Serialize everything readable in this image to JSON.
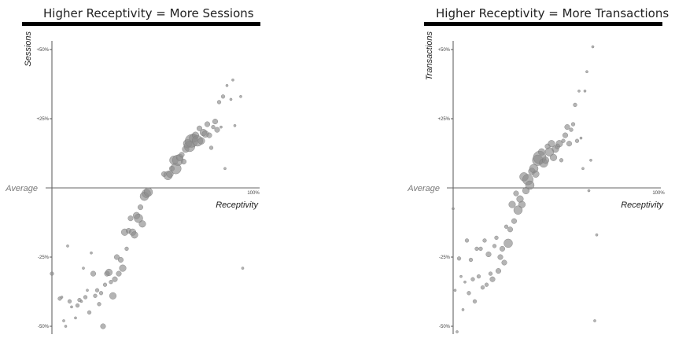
{
  "chart_data": [
    {
      "type": "scatter",
      "title": "Higher Receptivity = More Sessions",
      "xlabel": "Receptivity",
      "ylabel": "Sessions",
      "x_tick_label": "100%",
      "y_ticks": [
        50,
        25,
        -25,
        -50
      ],
      "y_tick_labels": [
        "+50%",
        "+25%",
        "-25%",
        "-50%"
      ],
      "zero_label": "Average",
      "xlim": [
        0,
        100
      ],
      "ylim": [
        -53,
        53
      ],
      "point_color": "#8c8c8c",
      "points": [
        {
          "x": 0,
          "y": -31,
          "size": 2
        },
        {
          "x": 4,
          "y": -40,
          "size": 2
        },
        {
          "x": 5,
          "y": -39.5,
          "size": 1
        },
        {
          "x": 6,
          "y": -48,
          "size": 1
        },
        {
          "x": 7,
          "y": -50,
          "size": 1
        },
        {
          "x": 8,
          "y": -21,
          "size": 1
        },
        {
          "x": 9,
          "y": -41,
          "size": 2
        },
        {
          "x": 10,
          "y": -43,
          "size": 1
        },
        {
          "x": 12,
          "y": -47,
          "size": 1
        },
        {
          "x": 13,
          "y": -42.5,
          "size": 2
        },
        {
          "x": 14,
          "y": -40.5,
          "size": 2
        },
        {
          "x": 15,
          "y": -41,
          "size": 1
        },
        {
          "x": 16,
          "y": -29,
          "size": 1
        },
        {
          "x": 17,
          "y": -39.5,
          "size": 2
        },
        {
          "x": 18,
          "y": -37,
          "size": 1
        },
        {
          "x": 19,
          "y": -45,
          "size": 2
        },
        {
          "x": 20,
          "y": -23.5,
          "size": 1
        },
        {
          "x": 21,
          "y": -31,
          "size": 3
        },
        {
          "x": 22,
          "y": -39,
          "size": 2
        },
        {
          "x": 23,
          "y": -37,
          "size": 2
        },
        {
          "x": 24,
          "y": -42,
          "size": 2
        },
        {
          "x": 25,
          "y": -38,
          "size": 2
        },
        {
          "x": 26,
          "y": -50,
          "size": 3
        },
        {
          "x": 27,
          "y": -35,
          "size": 2
        },
        {
          "x": 28,
          "y": -31,
          "size": 3
        },
        {
          "x": 29,
          "y": -30.5,
          "size": 4
        },
        {
          "x": 30,
          "y": -34,
          "size": 2
        },
        {
          "x": 31,
          "y": -39,
          "size": 4
        },
        {
          "x": 32,
          "y": -33,
          "size": 3
        },
        {
          "x": 33,
          "y": -25,
          "size": 3
        },
        {
          "x": 34,
          "y": -31,
          "size": 3
        },
        {
          "x": 35,
          "y": -26,
          "size": 3
        },
        {
          "x": 36,
          "y": -29,
          "size": 4
        },
        {
          "x": 37,
          "y": -16,
          "size": 4
        },
        {
          "x": 38,
          "y": -22,
          "size": 2
        },
        {
          "x": 39,
          "y": -15.5,
          "size": 3
        },
        {
          "x": 40,
          "y": -11,
          "size": 3
        },
        {
          "x": 41,
          "y": -16,
          "size": 4
        },
        {
          "x": 42,
          "y": -17,
          "size": 4
        },
        {
          "x": 43,
          "y": -10,
          "size": 4
        },
        {
          "x": 44,
          "y": -11,
          "size": 5
        },
        {
          "x": 45,
          "y": -7,
          "size": 3
        },
        {
          "x": 46,
          "y": -13,
          "size": 4
        },
        {
          "x": 47,
          "y": -3,
          "size": 5
        },
        {
          "x": 48,
          "y": -2,
          "size": 5
        },
        {
          "x": 49,
          "y": -1.5,
          "size": 5
        },
        {
          "x": 57,
          "y": 5,
          "size": 3
        },
        {
          "x": 59,
          "y": 4.5,
          "size": 5
        },
        {
          "x": 60,
          "y": 5,
          "size": 4
        },
        {
          "x": 61,
          "y": 7,
          "size": 3
        },
        {
          "x": 62,
          "y": 10,
          "size": 5
        },
        {
          "x": 63,
          "y": 7,
          "size": 6
        },
        {
          "x": 64,
          "y": 10,
          "size": 6
        },
        {
          "x": 65,
          "y": 11,
          "size": 4
        },
        {
          "x": 66,
          "y": 12,
          "size": 3
        },
        {
          "x": 67,
          "y": 9.5,
          "size": 3
        },
        {
          "x": 68,
          "y": 14,
          "size": 4
        },
        {
          "x": 69,
          "y": 16,
          "size": 5
        },
        {
          "x": 70,
          "y": 15,
          "size": 6
        },
        {
          "x": 71,
          "y": 17,
          "size": 7
        },
        {
          "x": 72,
          "y": 18,
          "size": 5
        },
        {
          "x": 73,
          "y": 19,
          "size": 4
        },
        {
          "x": 74,
          "y": 17,
          "size": 6
        },
        {
          "x": 75,
          "y": 21.5,
          "size": 3
        },
        {
          "x": 76,
          "y": 17,
          "size": 4
        },
        {
          "x": 77,
          "y": 20,
          "size": 4
        },
        {
          "x": 78,
          "y": 19.5,
          "size": 4
        },
        {
          "x": 79,
          "y": 23,
          "size": 3
        },
        {
          "x": 80,
          "y": 19,
          "size": 3
        },
        {
          "x": 81,
          "y": 14.5,
          "size": 2
        },
        {
          "x": 82,
          "y": 22,
          "size": 2
        },
        {
          "x": 83,
          "y": 24,
          "size": 3
        },
        {
          "x": 84,
          "y": 21,
          "size": 3
        },
        {
          "x": 85,
          "y": 31,
          "size": 2
        },
        {
          "x": 86,
          "y": 22,
          "size": 1
        },
        {
          "x": 87,
          "y": 33,
          "size": 2
        },
        {
          "x": 88,
          "y": 7,
          "size": 1
        },
        {
          "x": 89,
          "y": 37,
          "size": 1
        },
        {
          "x": 91,
          "y": 32,
          "size": 1
        },
        {
          "x": 92,
          "y": 39,
          "size": 1
        },
        {
          "x": 93,
          "y": 22.5,
          "size": 1
        },
        {
          "x": 96,
          "y": 33,
          "size": 1
        },
        {
          "x": 97,
          "y": -29,
          "size": 1
        }
      ]
    },
    {
      "type": "scatter",
      "title": "Higher Receptivity = More Transactions",
      "xlabel": "Receptivity",
      "ylabel": "Transactions",
      "x_tick_label": "100%",
      "y_ticks": [
        50,
        25,
        -25,
        -50
      ],
      "y_tick_labels": [
        "+50%",
        "+25%",
        "-25%",
        "-50%"
      ],
      "zero_label": "Average",
      "xlim": [
        0,
        100
      ],
      "ylim": [
        -53,
        53
      ],
      "point_color": "#8c8c8c",
      "points": [
        {
          "x": 0,
          "y": -7.5,
          "size": 1
        },
        {
          "x": 1,
          "y": -37,
          "size": 1
        },
        {
          "x": 2,
          "y": -52,
          "size": 1
        },
        {
          "x": 3,
          "y": -25.5,
          "size": 2
        },
        {
          "x": 4,
          "y": -32,
          "size": 1
        },
        {
          "x": 5,
          "y": -44,
          "size": 1
        },
        {
          "x": 6,
          "y": -34,
          "size": 1
        },
        {
          "x": 7,
          "y": -19,
          "size": 2
        },
        {
          "x": 8,
          "y": -38,
          "size": 2
        },
        {
          "x": 9,
          "y": -26,
          "size": 2
        },
        {
          "x": 10,
          "y": -33,
          "size": 2
        },
        {
          "x": 11,
          "y": -41,
          "size": 2
        },
        {
          "x": 12,
          "y": -22,
          "size": 2
        },
        {
          "x": 13,
          "y": -32,
          "size": 2
        },
        {
          "x": 14,
          "y": -22,
          "size": 2
        },
        {
          "x": 15,
          "y": -36,
          "size": 2
        },
        {
          "x": 16,
          "y": -19,
          "size": 2
        },
        {
          "x": 17,
          "y": -35,
          "size": 2
        },
        {
          "x": 18,
          "y": -24,
          "size": 3
        },
        {
          "x": 19,
          "y": -31,
          "size": 2
        },
        {
          "x": 20,
          "y": -33,
          "size": 3
        },
        {
          "x": 21,
          "y": -21,
          "size": 2
        },
        {
          "x": 22,
          "y": -18,
          "size": 2
        },
        {
          "x": 23,
          "y": -30,
          "size": 3
        },
        {
          "x": 24,
          "y": -25,
          "size": 3
        },
        {
          "x": 25,
          "y": -22,
          "size": 3
        },
        {
          "x": 26,
          "y": -27,
          "size": 3
        },
        {
          "x": 27,
          "y": -14,
          "size": 2
        },
        {
          "x": 28,
          "y": -20,
          "size": 5
        },
        {
          "x": 29,
          "y": -15,
          "size": 3
        },
        {
          "x": 30,
          "y": -6,
          "size": 4
        },
        {
          "x": 31,
          "y": -12,
          "size": 3
        },
        {
          "x": 32,
          "y": -2,
          "size": 3
        },
        {
          "x": 33,
          "y": -8,
          "size": 5
        },
        {
          "x": 34,
          "y": -4,
          "size": 4
        },
        {
          "x": 35,
          "y": -6,
          "size": 4
        },
        {
          "x": 36,
          "y": 4,
          "size": 5
        },
        {
          "x": 37,
          "y": -1,
          "size": 4
        },
        {
          "x": 38,
          "y": 3,
          "size": 6
        },
        {
          "x": 39,
          "y": 1,
          "size": 5
        },
        {
          "x": 40,
          "y": 6,
          "size": 4
        },
        {
          "x": 41,
          "y": 7,
          "size": 5
        },
        {
          "x": 42,
          "y": 5,
          "size": 4
        },
        {
          "x": 43,
          "y": 10,
          "size": 6
        },
        {
          "x": 44,
          "y": 11,
          "size": 7
        },
        {
          "x": 45,
          "y": 13,
          "size": 4
        },
        {
          "x": 46,
          "y": 9,
          "size": 5
        },
        {
          "x": 47,
          "y": 10,
          "size": 4
        },
        {
          "x": 48,
          "y": 15,
          "size": 3
        },
        {
          "x": 49,
          "y": 13,
          "size": 5
        },
        {
          "x": 50,
          "y": 16,
          "size": 4
        },
        {
          "x": 51,
          "y": 11,
          "size": 4
        },
        {
          "x": 52,
          "y": 14,
          "size": 4
        },
        {
          "x": 53,
          "y": 15,
          "size": 3
        },
        {
          "x": 54,
          "y": 16,
          "size": 4
        },
        {
          "x": 55,
          "y": 10,
          "size": 2
        },
        {
          "x": 56,
          "y": 17,
          "size": 2
        },
        {
          "x": 57,
          "y": 19,
          "size": 3
        },
        {
          "x": 58,
          "y": 22,
          "size": 3
        },
        {
          "x": 59,
          "y": 16,
          "size": 3
        },
        {
          "x": 60,
          "y": 21,
          "size": 2
        },
        {
          "x": 61,
          "y": 23,
          "size": 2
        },
        {
          "x": 62,
          "y": 30,
          "size": 2
        },
        {
          "x": 63,
          "y": 17,
          "size": 2
        },
        {
          "x": 64,
          "y": 35,
          "size": 1
        },
        {
          "x": 65,
          "y": 18,
          "size": 1
        },
        {
          "x": 66,
          "y": 7,
          "size": 1
        },
        {
          "x": 67,
          "y": 35,
          "size": 1
        },
        {
          "x": 68,
          "y": 42,
          "size": 1
        },
        {
          "x": 69,
          "y": -1,
          "size": 1
        },
        {
          "x": 70,
          "y": 10,
          "size": 1
        },
        {
          "x": 71,
          "y": 51,
          "size": 1
        },
        {
          "x": 72,
          "y": -48,
          "size": 1
        },
        {
          "x": 73,
          "y": -17,
          "size": 1
        }
      ]
    }
  ]
}
